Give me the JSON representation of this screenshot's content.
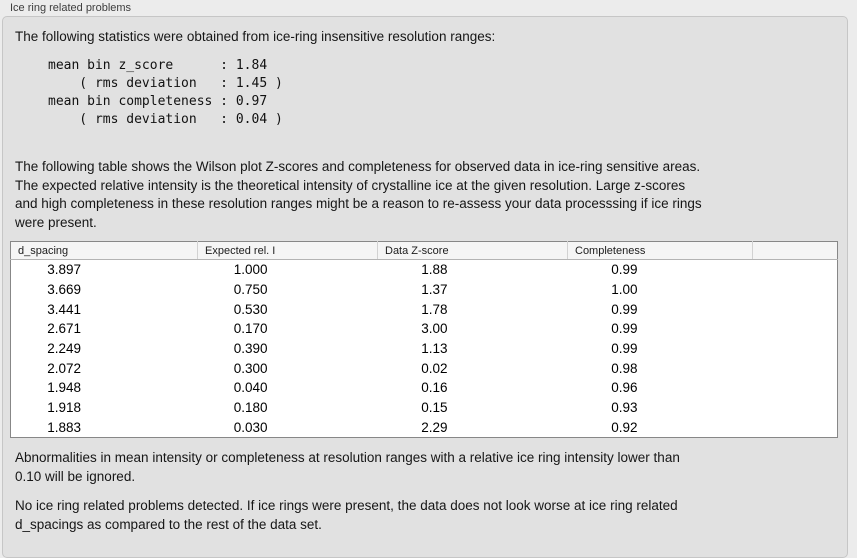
{
  "panel": {
    "label": "Ice ring related problems"
  },
  "stats": {
    "intro": "The following statistics were obtained from ice-ring insensitive resolution ranges:",
    "block_lines": [
      "mean bin z_score      : 1.84",
      "    ( rms deviation   : 1.45 )",
      "mean bin completeness : 0.97",
      "    ( rms deviation   : 0.04 )"
    ]
  },
  "description_lines": [
    "The following table shows the Wilson plot Z-scores and completeness for observed data in ice-ring sensitive areas.",
    "The expected relative intensity is the theoretical intensity of crystalline ice at the given resolution. Large z-scores",
    "and high completeness in these resolution ranges might be a reason to re-assess your data processsing if ice rings",
    "were present."
  ],
  "table": {
    "columns": [
      "d_spacing",
      "Expected rel. I",
      "Data Z-score",
      "Completeness"
    ],
    "rows": [
      [
        "3.897",
        "1.000",
        "1.88",
        "0.99"
      ],
      [
        "3.669",
        "0.750",
        "1.37",
        "1.00"
      ],
      [
        "3.441",
        "0.530",
        "1.78",
        "0.99"
      ],
      [
        "2.671",
        "0.170",
        "3.00",
        "0.99"
      ],
      [
        "2.249",
        "0.390",
        "1.13",
        "0.99"
      ],
      [
        "2.072",
        "0.300",
        "0.02",
        "0.98"
      ],
      [
        "1.948",
        "0.040",
        "0.16",
        "0.96"
      ],
      [
        "1.918",
        "0.180",
        "0.15",
        "0.93"
      ],
      [
        "1.883",
        "0.030",
        "2.29",
        "0.92"
      ]
    ]
  },
  "notes": {
    "ignore_rule_lines": [
      "Abnormalities in mean intensity or completeness at resolution ranges with a relative ice ring intensity lower than",
      "0.10 will be ignored."
    ],
    "conclusion_lines": [
      "No ice ring related problems detected. If ice rings were present, the data does not look worse at ice ring related",
      "d_spacings as compared to the rest of the data set."
    ]
  },
  "colors": {
    "page_background": "#ececec",
    "panel_background": "#e1e1e1",
    "panel_border": "#c6c6c6",
    "table_border": "#878787",
    "header_background": "#f5f5f5",
    "text": "#161616"
  }
}
